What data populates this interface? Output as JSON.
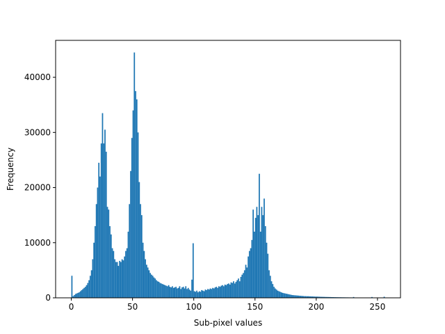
{
  "chart_data": {
    "type": "histogram",
    "xlabel": "Sub-pixel values",
    "ylabel": "Frequency",
    "color": "#1f77b4",
    "bins": [
      0,
      1,
      2,
      3,
      4,
      5,
      6,
      7,
      8,
      9,
      10,
      11,
      12,
      13,
      14,
      15,
      16,
      17,
      18,
      19,
      20,
      21,
      22,
      23,
      24,
      25,
      26,
      27,
      28,
      29,
      30,
      31,
      32,
      33,
      34,
      35,
      36,
      37,
      38,
      39,
      40,
      41,
      42,
      43,
      44,
      45,
      46,
      47,
      48,
      49,
      50,
      51,
      52,
      53,
      54,
      55,
      56,
      57,
      58,
      59,
      60,
      61,
      62,
      63,
      64,
      65,
      66,
      67,
      68,
      69,
      70,
      71,
      72,
      73,
      74,
      75,
      76,
      77,
      78,
      79,
      80,
      81,
      82,
      83,
      84,
      85,
      86,
      87,
      88,
      89,
      90,
      91,
      92,
      93,
      94,
      95,
      96,
      97,
      98,
      99,
      100,
      101,
      102,
      103,
      104,
      105,
      106,
      107,
      108,
      109,
      110,
      111,
      112,
      113,
      114,
      115,
      116,
      117,
      118,
      119,
      120,
      121,
      122,
      123,
      124,
      125,
      126,
      127,
      128,
      129,
      130,
      131,
      132,
      133,
      134,
      135,
      136,
      137,
      138,
      139,
      140,
      141,
      142,
      143,
      144,
      145,
      146,
      147,
      148,
      149,
      150,
      151,
      152,
      153,
      154,
      155,
      156,
      157,
      158,
      159,
      160,
      161,
      162,
      163,
      164,
      165,
      166,
      167,
      168,
      169,
      170,
      171,
      172,
      173,
      174,
      175,
      176,
      177,
      178,
      179,
      180,
      181,
      182,
      183,
      184,
      185,
      186,
      187,
      188,
      189,
      190,
      191,
      192,
      193,
      194,
      195,
      196,
      197,
      198,
      199,
      200,
      201,
      202,
      203,
      204,
      205,
      206,
      207,
      208,
      209,
      210,
      211,
      212,
      213,
      214,
      215,
      216,
      217,
      218,
      219,
      220,
      221,
      222,
      223,
      224,
      225,
      226,
      227,
      228,
      229,
      230,
      231,
      232,
      233,
      234,
      235,
      236,
      237,
      238,
      239,
      240,
      241,
      242,
      243,
      244,
      245,
      246,
      247,
      248,
      249,
      250,
      251,
      252,
      253,
      254,
      255,
      256
    ],
    "counts": [
      4000,
      300,
      500,
      700,
      800,
      900,
      1000,
      1200,
      1400,
      1600,
      1800,
      2000,
      2300,
      2700,
      3200,
      4000,
      5000,
      7000,
      10000,
      13000,
      17000,
      20000,
      24500,
      22000,
      28000,
      33500,
      28000,
      30500,
      26500,
      16500,
      16000,
      13000,
      11500,
      9000,
      8500,
      7000,
      6500,
      6500,
      5800,
      6700,
      6500,
      7000,
      6800,
      7500,
      8500,
      9000,
      12000,
      17000,
      23000,
      29000,
      34000,
      44500,
      37500,
      36000,
      30000,
      21000,
      17000,
      15000,
      10000,
      8500,
      7000,
      6000,
      5500,
      5000,
      4500,
      4200,
      4000,
      3700,
      3500,
      3200,
      3000,
      2900,
      2700,
      2600,
      2500,
      2400,
      2300,
      2200,
      2100,
      2300,
      2000,
      1900,
      2100,
      1800,
      1900,
      2000,
      1700,
      1800,
      2100,
      1600,
      1900,
      2000,
      1700,
      2100,
      1600,
      1800,
      1500,
      1300,
      3300,
      9900,
      1200,
      1100,
      1300,
      1000,
      1200,
      1100,
      1400,
      1300,
      1200,
      1500,
      1400,
      1600,
      1500,
      1700,
      1600,
      1800,
      1700,
      1900,
      2000,
      1800,
      2100,
      2000,
      2200,
      2300,
      2100,
      2400,
      2300,
      2500,
      2600,
      2400,
      2800,
      2700,
      3000,
      2600,
      2900,
      3200,
      3500,
      3000,
      3800,
      4200,
      4500,
      5000,
      6000,
      5500,
      7500,
      8500,
      9000,
      10500,
      16000,
      12000,
      14500,
      16500,
      15000,
      22500,
      12000,
      16500,
      15000,
      18000,
      13000,
      10000,
      8000,
      5000,
      4000,
      3000,
      2500,
      2000,
      1700,
      1500,
      1300,
      1200,
      1100,
      1000,
      900,
      850,
      800,
      750,
      700,
      650,
      600,
      550,
      500,
      480,
      460,
      440,
      420,
      400,
      380,
      360,
      340,
      320,
      300,
      300,
      280,
      290,
      270,
      260,
      250,
      240,
      230,
      220,
      220,
      210,
      200,
      190,
      180,
      175,
      170,
      160,
      155,
      150,
      145,
      140,
      130,
      125,
      120,
      115,
      110,
      105,
      100,
      100,
      95,
      90,
      90,
      85,
      80,
      80,
      75,
      70,
      70,
      65,
      150,
      60,
      60,
      55,
      55,
      50,
      50,
      45,
      45,
      40,
      40,
      35,
      35,
      30,
      30,
      150,
      25,
      25,
      20,
      20,
      20,
      15,
      15,
      15,
      10,
      200
    ],
    "xlim": [
      -12.8,
      268.8
    ],
    "ylim": [
      0,
      46700
    ],
    "xticks": [
      0,
      50,
      100,
      150,
      200,
      250
    ],
    "yticks": [
      0,
      10000,
      20000,
      30000,
      40000
    ]
  }
}
